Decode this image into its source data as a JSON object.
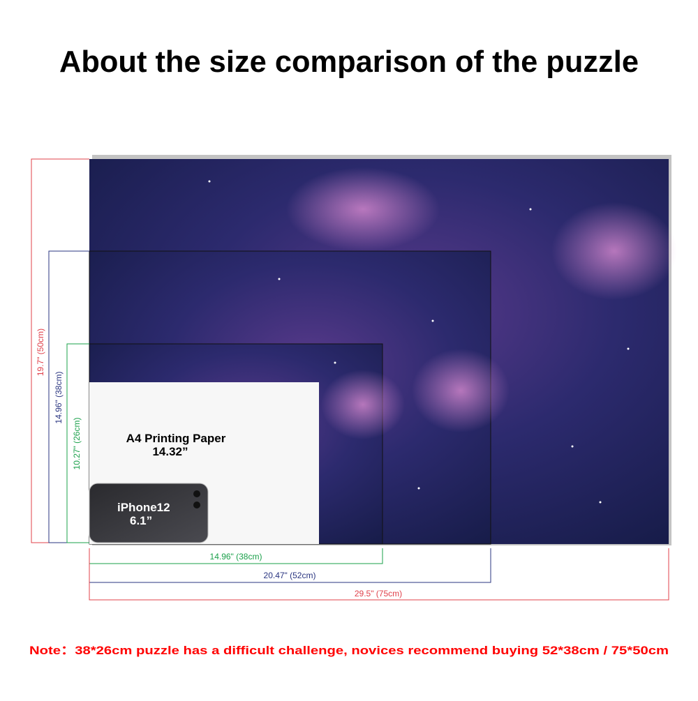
{
  "header": {
    "title": "About the size comparison of the puzzle"
  },
  "dimensions": {
    "large_height": "19.7\" (50cm)",
    "medium_height": "14.96\" (38cm)",
    "small_height": "10.27\" (26cm)",
    "small_width": "14.96\" (38cm)",
    "medium_width": "20.47\" (52cm)",
    "large_width": "29.5\" (75cm)"
  },
  "paper": {
    "label": "A4 Printing Paper",
    "size": "14.32”"
  },
  "phone": {
    "label": "iPhone12",
    "size": "6.1”"
  },
  "note": "Note：38*26cm puzzle has a difficult challenge, novices recommend buying 52*38cm / 75*50cm"
}
